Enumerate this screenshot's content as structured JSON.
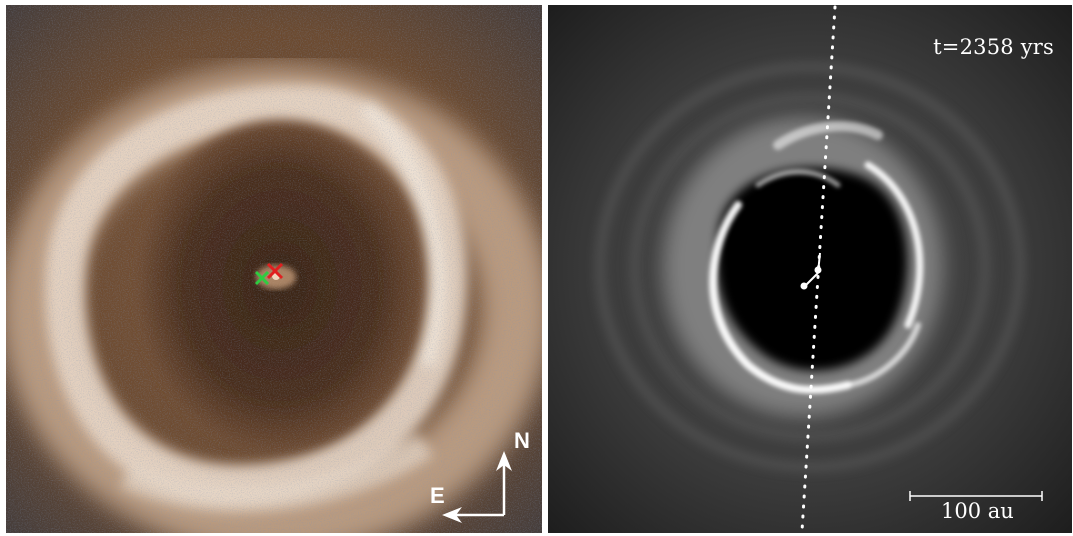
{
  "left_panel": {
    "compass": {
      "north_label": "N",
      "east_label": "E",
      "arrow_color": "#ffffff"
    },
    "markers": [
      {
        "name": "green-cross-marker",
        "color": "#2ecc40"
      },
      {
        "name": "red-cross-marker",
        "color": "#e02020"
      }
    ],
    "colors": {
      "ring": "#e8d6c6",
      "cavity": "#4a2e1c",
      "background": "#6b4a30",
      "noise": "#3c5070"
    }
  },
  "right_panel": {
    "time_label": "t=2358 yrs",
    "scale_bar_label": "100 au",
    "colors": {
      "background": "#3a3a3a",
      "cavity": "#050505",
      "ring": "#ffffff"
    }
  }
}
